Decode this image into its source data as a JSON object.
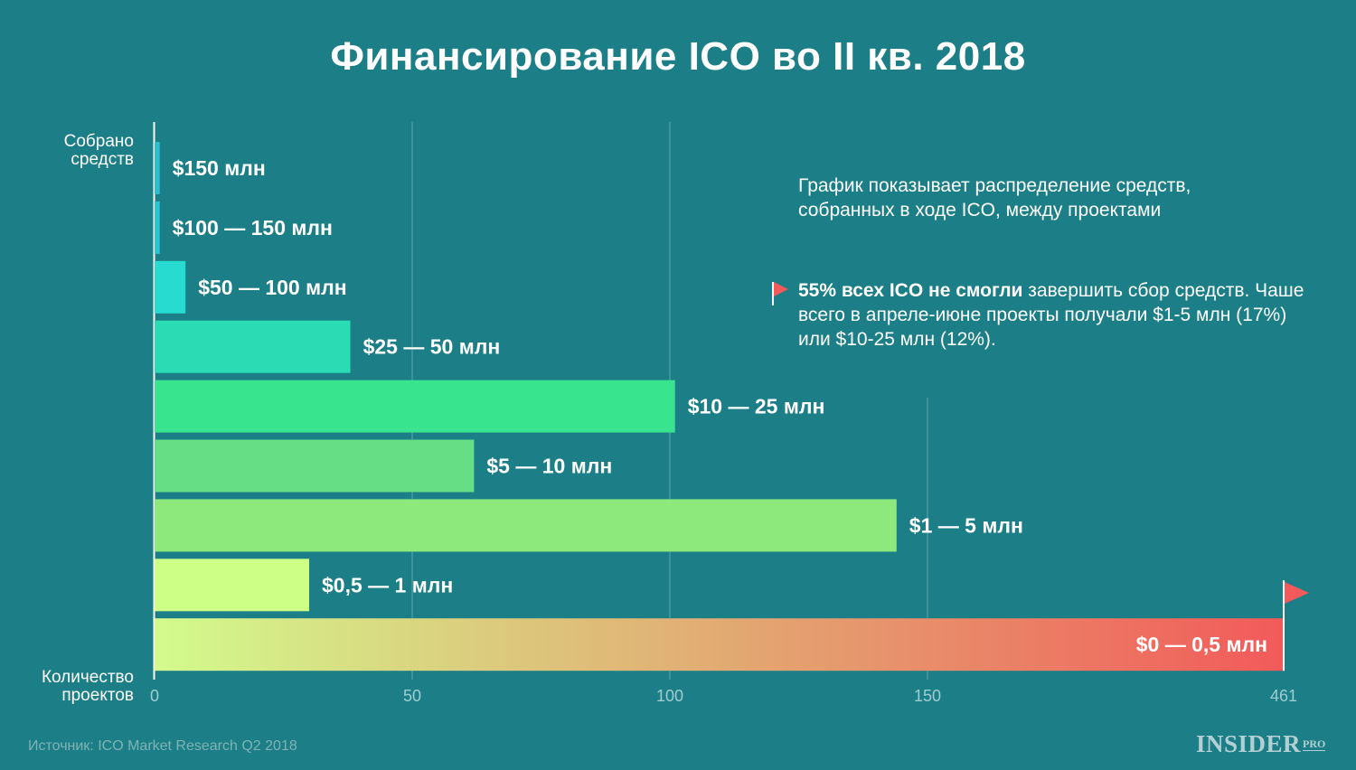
{
  "title": "Финансирование ICO во II кв. 2018",
  "y_axis_label_top": "Собрано средств",
  "y_axis_label_bottom": "Количество проектов",
  "notes": {
    "description": "График показывает распределение средств, собранных в ходе ICO, между проектами",
    "highlight_bold": "55% всех ICO не смогли",
    "highlight_rest": "завершить сбор средств. Чаше всего в апреле-июне проекты получали $1-5 млн (17%) или $10-25 млн (12%)."
  },
  "source": "Источник: ICO Market Research Q2 2018",
  "logo": {
    "main": "INSIDER",
    "pro": "PRO"
  },
  "colors": {
    "background": "#1c7e86",
    "flag": "#f25a5a",
    "gridline": "#5aa5ab",
    "tick_label": "#9fcdd2"
  },
  "chart_data": {
    "type": "bar",
    "orientation": "horizontal",
    "categories": [
      "$150 млн",
      "$100 — 150 млн",
      "$50 — 100 млн",
      "$25 — 50 млн",
      "$10 — 25 млн",
      "$5 — 10 млн",
      "$1 — 5 млн",
      "$0,5 — 1 млн",
      "$0 — 0,5 млн"
    ],
    "values": [
      1,
      1,
      6,
      38,
      101,
      62,
      144,
      30,
      461
    ],
    "bar_colors": [
      "#2bbed0",
      "#27c6d2",
      "#27dbd0",
      "#2bdbb4",
      "#39e48e",
      "#66de86",
      "#8ee97d",
      "#cdfe86",
      "gradient"
    ],
    "gradient_colors": [
      "#d2fb8c",
      "#f25a5a"
    ],
    "xticks": [
      "0",
      "50",
      "100",
      "150",
      "461"
    ],
    "ylabel": "Собрано средств",
    "xlabel": "Количество проектов",
    "axis_break": "150 → 461",
    "grid": true
  }
}
